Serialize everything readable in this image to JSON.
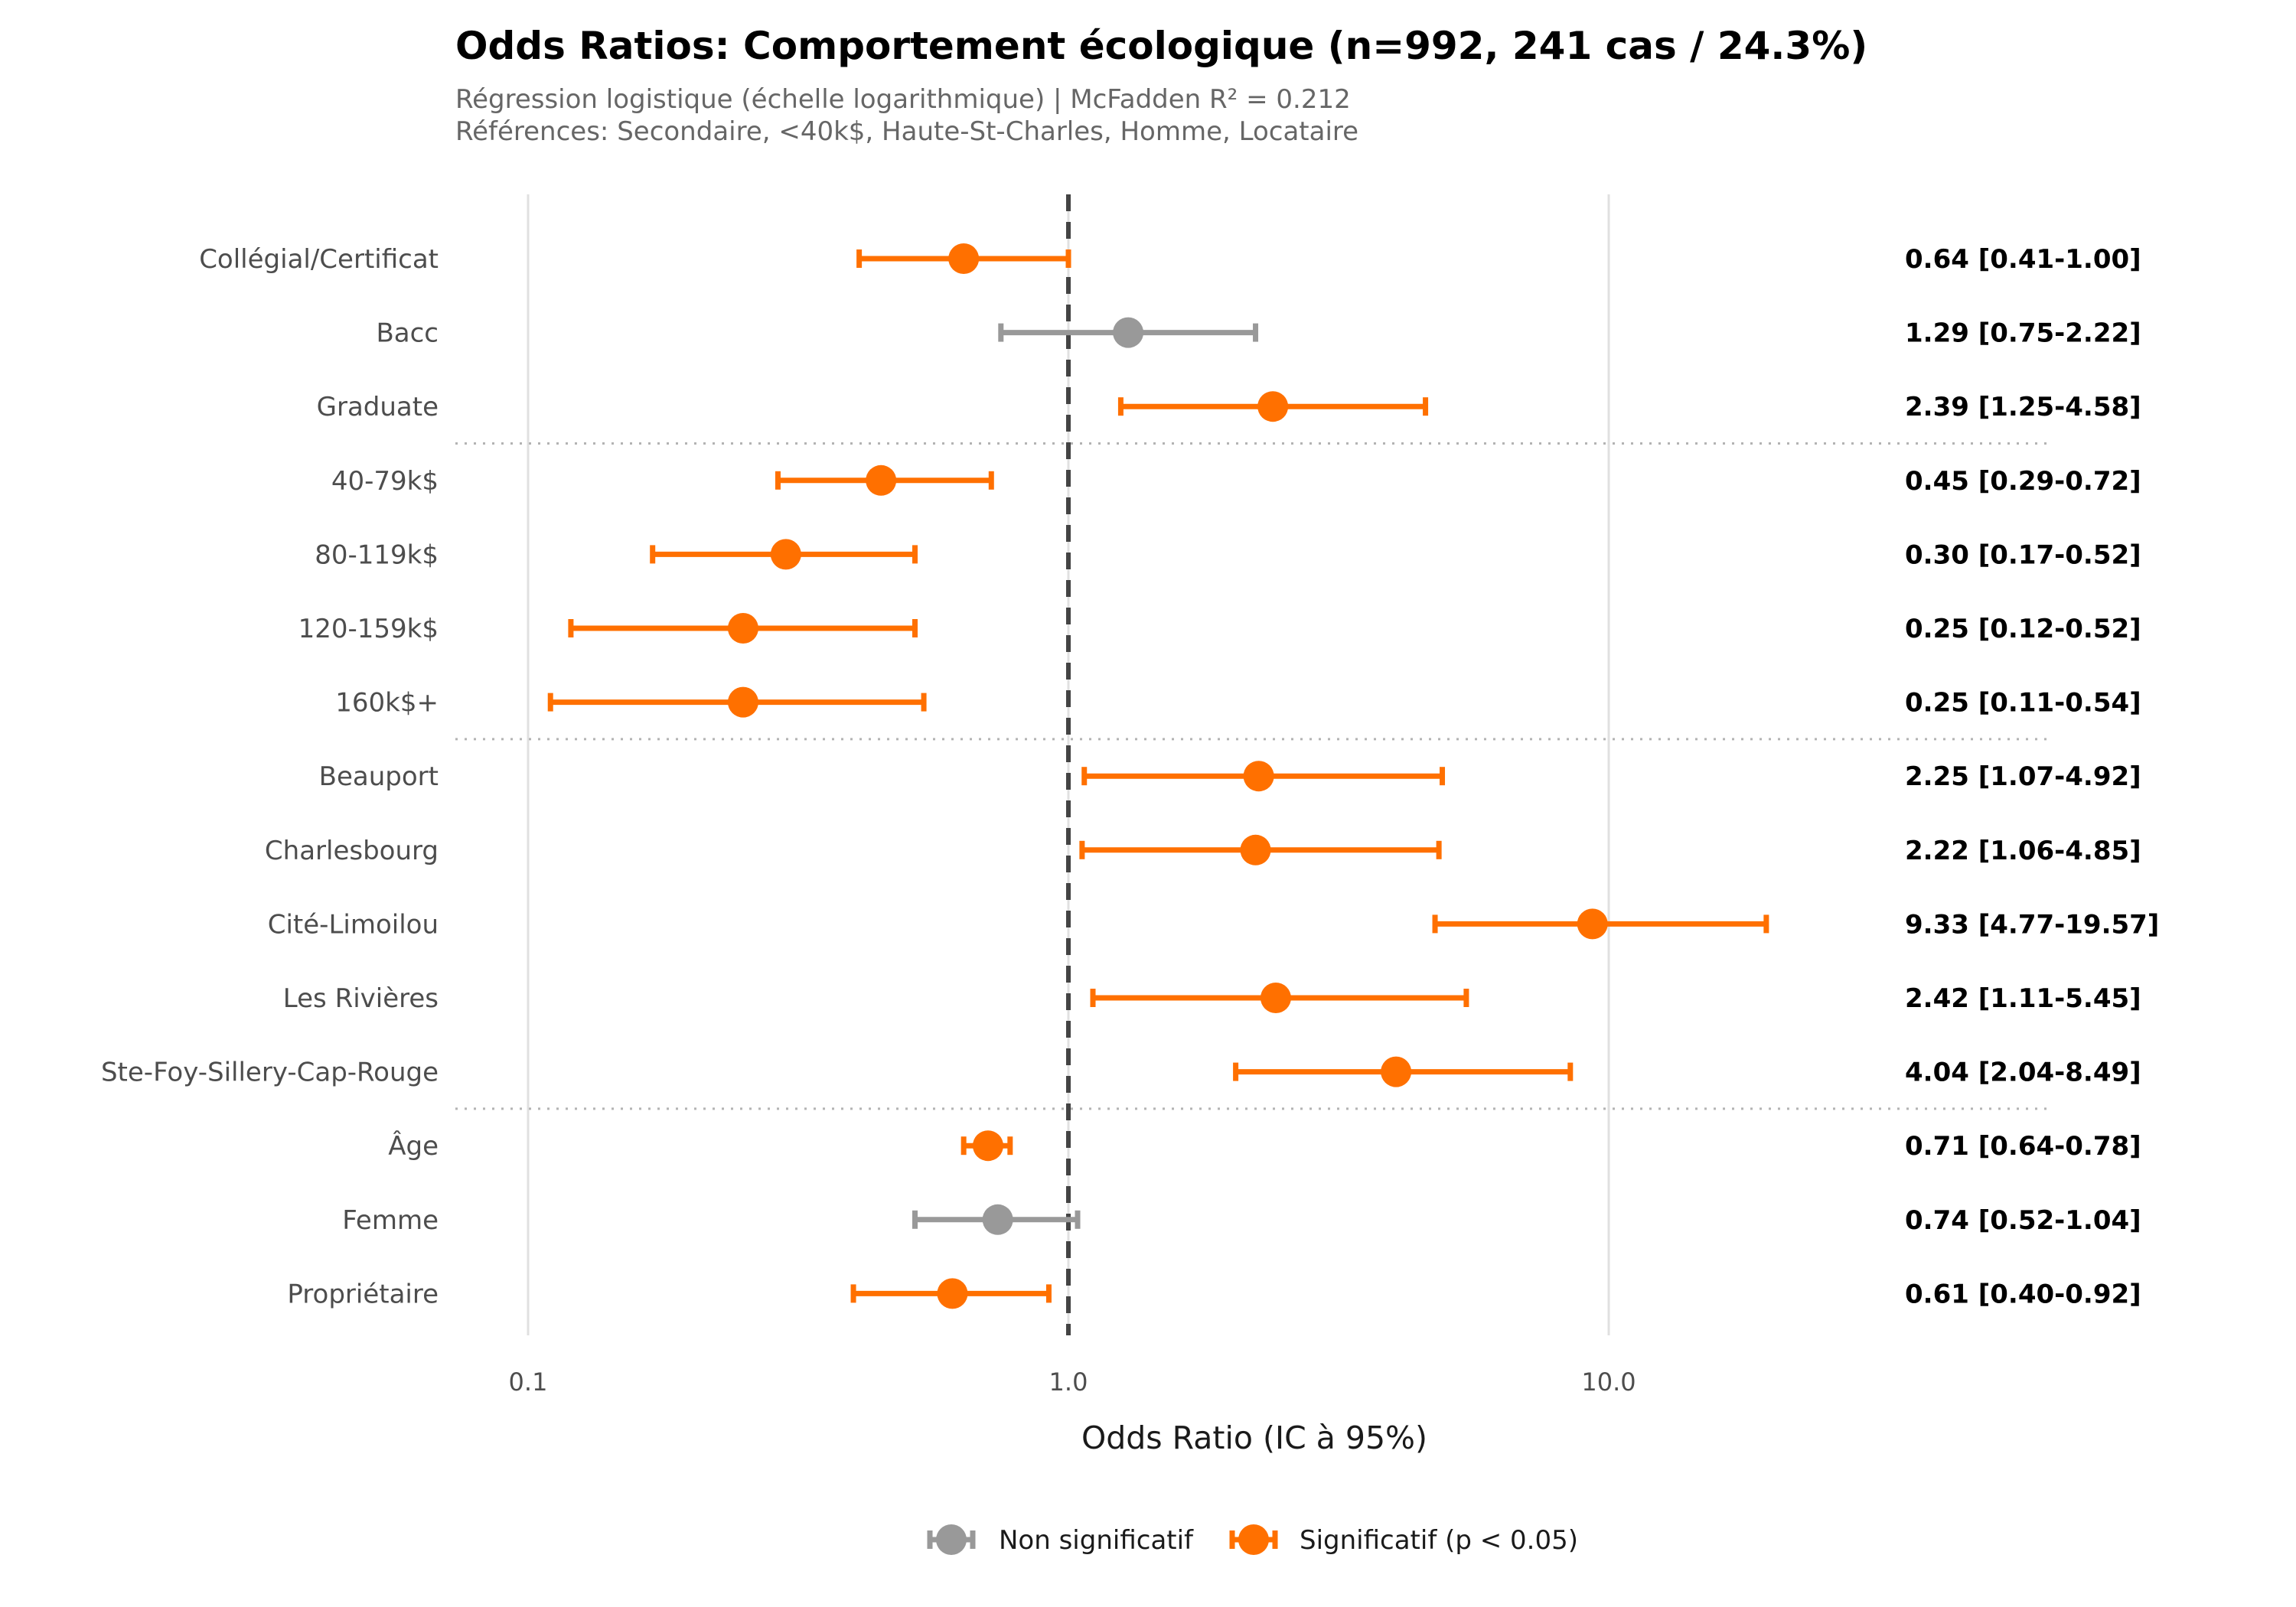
{
  "chart_data": {
    "type": "forest",
    "title": "Odds Ratios: Comportement écologique (n=992, 241 cas / 24.3%)",
    "subtitle_lines": [
      "Régression logistique (échelle logarithmique) | McFadden R² = 0.212",
      "Références: Secondaire, <40k$, Haute-St-Charles, Homme, Locataire"
    ],
    "xlabel": "Odds Ratio (IC à 95%)",
    "x_scale": "log",
    "xlim": [
      0.0632,
      67
    ],
    "x_ticks": [
      0.1,
      1.0,
      10.0
    ],
    "x_tick_labels": [
      "0.1",
      "1.0",
      "10.0"
    ],
    "reference_line": 1.0,
    "grid": "vertical major",
    "groups": [
      {
        "rows": [
          {
            "label": "Collégial/Certificat",
            "or": 0.64,
            "lo": 0.41,
            "hi": 1.0,
            "significant": true,
            "text": "0.64 [0.41-1.00]"
          },
          {
            "label": "Bacc",
            "or": 1.29,
            "lo": 0.75,
            "hi": 2.22,
            "significant": false,
            "text": "1.29 [0.75-2.22]"
          },
          {
            "label": "Graduate",
            "or": 2.39,
            "lo": 1.25,
            "hi": 4.58,
            "significant": true,
            "text": "2.39 [1.25-4.58]"
          }
        ]
      },
      {
        "rows": [
          {
            "label": "40-79k$",
            "or": 0.45,
            "lo": 0.29,
            "hi": 0.72,
            "significant": true,
            "text": "0.45 [0.29-0.72]"
          },
          {
            "label": "80-119k$",
            "or": 0.3,
            "lo": 0.17,
            "hi": 0.52,
            "significant": true,
            "text": "0.30 [0.17-0.52]"
          },
          {
            "label": "120-159k$",
            "or": 0.25,
            "lo": 0.12,
            "hi": 0.52,
            "significant": true,
            "text": "0.25 [0.12-0.52]"
          },
          {
            "label": "160k$+",
            "or": 0.25,
            "lo": 0.11,
            "hi": 0.54,
            "significant": true,
            "text": "0.25 [0.11-0.54]"
          }
        ]
      },
      {
        "rows": [
          {
            "label": "Beauport",
            "or": 2.25,
            "lo": 1.07,
            "hi": 4.92,
            "significant": true,
            "text": "2.25 [1.07-4.92]"
          },
          {
            "label": "Charlesbourg",
            "or": 2.22,
            "lo": 1.06,
            "hi": 4.85,
            "significant": true,
            "text": "2.22 [1.06-4.85]"
          },
          {
            "label": "Cité-Limoilou",
            "or": 9.33,
            "lo": 4.77,
            "hi": 19.57,
            "significant": true,
            "text": "9.33 [4.77-19.57]"
          },
          {
            "label": "Les Rivières",
            "or": 2.42,
            "lo": 1.11,
            "hi": 5.45,
            "significant": true,
            "text": "2.42 [1.11-5.45]"
          },
          {
            "label": "Ste-Foy-Sillery-Cap-Rouge",
            "or": 4.04,
            "lo": 2.04,
            "hi": 8.49,
            "significant": true,
            "text": "4.04 [2.04-8.49]"
          }
        ]
      },
      {
        "rows": [
          {
            "label": "Âge",
            "or": 0.71,
            "lo": 0.64,
            "hi": 0.78,
            "significant": true,
            "text": "0.71 [0.64-0.78]"
          },
          {
            "label": "Femme",
            "or": 0.74,
            "lo": 0.52,
            "hi": 1.04,
            "significant": false,
            "text": "0.74 [0.52-1.04]"
          },
          {
            "label": "Propriétaire",
            "or": 0.61,
            "lo": 0.4,
            "hi": 0.92,
            "significant": true,
            "text": "0.61 [0.40-0.92]"
          }
        ]
      }
    ],
    "legend": {
      "position": "bottom-center",
      "items": [
        {
          "label": "Non significatif",
          "color": "#999999"
        },
        {
          "label": "Significatif (p < 0.05)",
          "color": "#ff7000"
        }
      ]
    },
    "colors": {
      "significant": "#ff7000",
      "non_significant": "#999999",
      "reference_line": "#444444",
      "grid": "#e0e0e0",
      "separator": "#b3b3b3"
    }
  }
}
